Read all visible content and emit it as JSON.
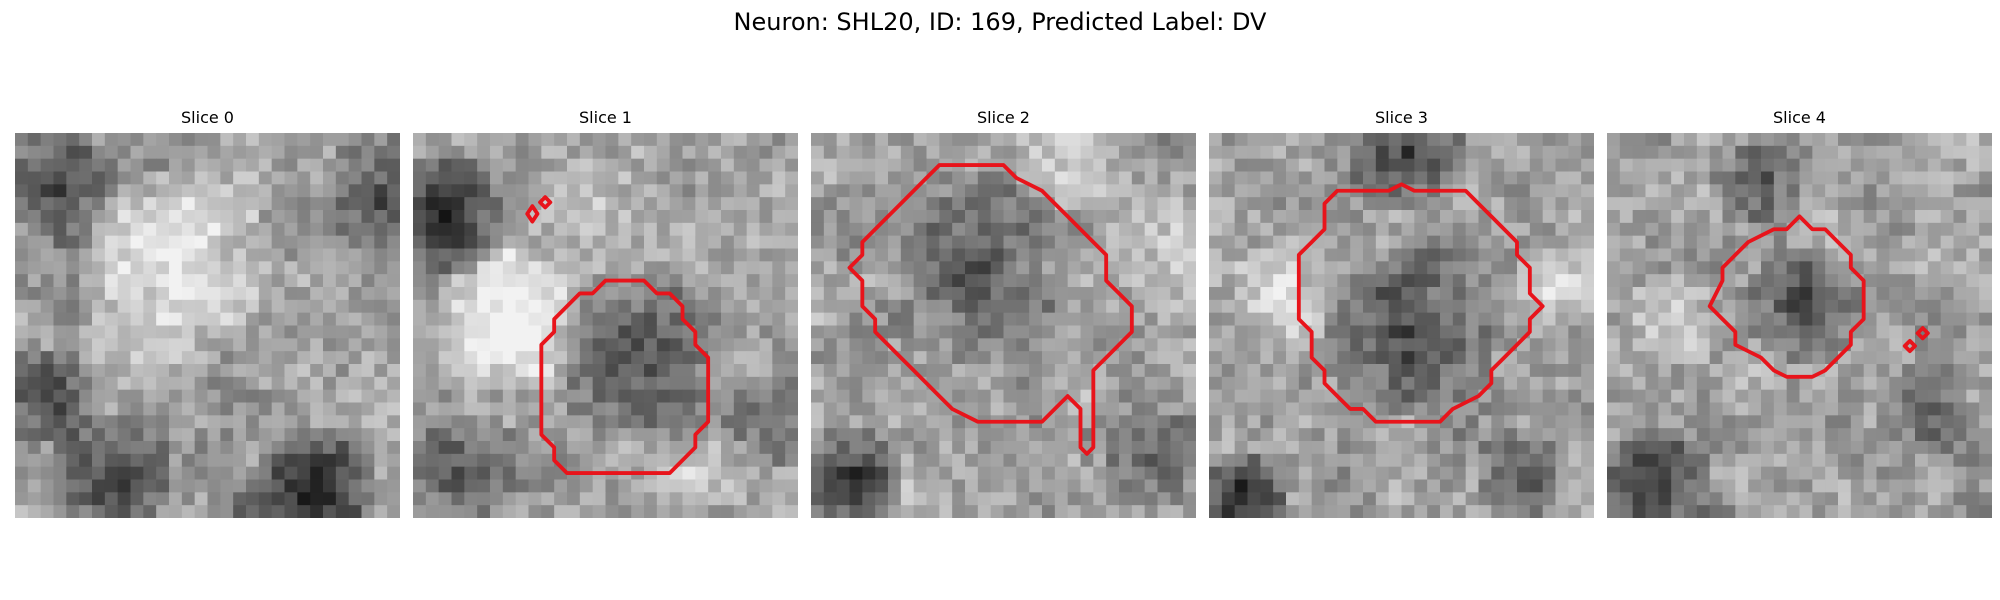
{
  "figure": {
    "title": "Neuron: SHL20, ID: 169, Predicted Label: DV"
  },
  "contour_color": "#e8141b",
  "panels": [
    {
      "title": "Slice 0",
      "blobs": [
        {
          "cx": 12,
          "cy": 10,
          "r": 8,
          "v": 70,
          "s": 0.55
        },
        {
          "cx": 3,
          "cy": 4,
          "r": 5,
          "v": -70,
          "s": 0.7
        },
        {
          "cx": 28,
          "cy": 4,
          "r": 5,
          "v": -60,
          "s": 0.7
        },
        {
          "cx": 2,
          "cy": 20,
          "r": 4,
          "v": -70,
          "s": 0.7
        },
        {
          "cx": 7,
          "cy": 26,
          "r": 5,
          "v": -80,
          "s": 0.7
        },
        {
          "cx": 23,
          "cy": 27,
          "r": 5,
          "v": -100,
          "s": 0.7
        },
        {
          "cx": 17,
          "cy": 29,
          "r": 3,
          "v": -40,
          "s": 0.7
        }
      ]
    },
    {
      "title": "Slice 1",
      "blobs": [
        {
          "cx": 2,
          "cy": 6,
          "r": 5,
          "v": -100,
          "s": 0.7
        },
        {
          "cx": 7,
          "cy": 14,
          "r": 6,
          "v": 90,
          "s": 0.55
        },
        {
          "cx": 13,
          "cy": 6,
          "r": 5,
          "v": 40,
          "s": 0.6
        },
        {
          "cx": 17,
          "cy": 17,
          "r": 7,
          "v": -70,
          "s": 0.6
        },
        {
          "cx": 27,
          "cy": 22,
          "r": 4,
          "v": -40,
          "s": 0.7
        },
        {
          "cx": 4,
          "cy": 26,
          "r": 5,
          "v": -60,
          "s": 0.7
        },
        {
          "cx": 22,
          "cy": 26,
          "r": 4,
          "v": 40,
          "s": 0.7
        }
      ],
      "contours": [
        [
          [
            15,
            11.5
          ],
          [
            18,
            11.5
          ],
          [
            19,
            12.5
          ],
          [
            20,
            12.5
          ],
          [
            21,
            13.5
          ],
          [
            21,
            14.5
          ],
          [
            22,
            15.5
          ],
          [
            22,
            16.5
          ],
          [
            23,
            17.5
          ],
          [
            23,
            22.5
          ],
          [
            22,
            23.5
          ],
          [
            22,
            24.5
          ],
          [
            21,
            25.5
          ],
          [
            20,
            26.5
          ],
          [
            17,
            26.5
          ],
          [
            12,
            26.5
          ],
          [
            11,
            25.5
          ],
          [
            11,
            24.5
          ],
          [
            10,
            23.5
          ],
          [
            10,
            16.5
          ],
          [
            11,
            15.5
          ],
          [
            11,
            14.5
          ],
          [
            12,
            13.5
          ],
          [
            13,
            12.5
          ],
          [
            14,
            12.5
          ]
        ],
        [
          [
            9.3,
            5.7
          ],
          [
            9.7,
            6.3
          ],
          [
            9.3,
            6.9
          ],
          [
            8.9,
            6.3
          ]
        ],
        [
          [
            10.3,
            5.0
          ],
          [
            10.7,
            5.4
          ],
          [
            10.3,
            5.8
          ],
          [
            9.9,
            5.4
          ]
        ]
      ]
    },
    {
      "title": "Slice 2",
      "blobs": [
        {
          "cx": 12,
          "cy": 10,
          "r": 8,
          "v": -60,
          "s": 0.55
        },
        {
          "cx": 3,
          "cy": 26,
          "r": 4,
          "v": -90,
          "s": 0.7
        },
        {
          "cx": 20,
          "cy": 2,
          "r": 5,
          "v": 40,
          "s": 0.7
        },
        {
          "cx": 26,
          "cy": 8,
          "r": 4,
          "v": 30,
          "s": 0.7
        },
        {
          "cx": 26,
          "cy": 25,
          "r": 4,
          "v": -40,
          "s": 0.7
        }
      ],
      "contours": [
        [
          [
            10,
            2.5
          ],
          [
            15,
            2.5
          ],
          [
            16,
            3.5
          ],
          [
            18,
            4.5
          ],
          [
            19,
            5.5
          ],
          [
            20,
            6.5
          ],
          [
            21,
            7.5
          ],
          [
            22,
            8.5
          ],
          [
            23,
            9.5
          ],
          [
            23,
            11.5
          ],
          [
            24,
            12.5
          ],
          [
            25,
            13.5
          ],
          [
            25,
            15.5
          ],
          [
            24,
            16.5
          ],
          [
            23,
            17.5
          ],
          [
            22,
            18.5
          ],
          [
            22,
            24.5
          ],
          [
            21.5,
            25.0
          ],
          [
            21,
            24.5
          ],
          [
            21,
            21.5
          ],
          [
            20,
            20.5
          ],
          [
            19,
            21.5
          ],
          [
            18,
            22.5
          ],
          [
            13,
            22.5
          ],
          [
            11,
            21.5
          ],
          [
            10,
            20.5
          ],
          [
            9,
            19.5
          ],
          [
            8,
            18.5
          ],
          [
            7,
            17.5
          ],
          [
            6,
            16.5
          ],
          [
            5,
            15.5
          ],
          [
            5,
            14.5
          ],
          [
            4,
            13.5
          ],
          [
            4,
            11.5
          ],
          [
            3,
            10.5
          ],
          [
            4,
            9.5
          ],
          [
            4,
            8.5
          ],
          [
            5,
            7.5
          ],
          [
            6,
            6.5
          ],
          [
            7,
            5.5
          ],
          [
            8,
            4.5
          ],
          [
            9,
            3.5
          ]
        ]
      ]
    },
    {
      "title": "Slice 3",
      "blobs": [
        {
          "cx": 15,
          "cy": 15,
          "r": 7,
          "v": -75,
          "s": 0.55
        },
        {
          "cx": 2,
          "cy": 28,
          "r": 4,
          "v": -110,
          "s": 0.7
        },
        {
          "cx": 15,
          "cy": 1,
          "r": 5,
          "v": -90,
          "s": 0.7
        },
        {
          "cx": 5,
          "cy": 12,
          "r": 4,
          "v": 50,
          "s": 0.7
        },
        {
          "cx": 27,
          "cy": 11,
          "r": 4,
          "v": 40,
          "s": 0.7
        },
        {
          "cx": 24,
          "cy": 26,
          "r": 4,
          "v": -60,
          "s": 0.7
        }
      ],
      "contours": [
        [
          [
            10,
            4.5
          ],
          [
            14,
            4.5
          ],
          [
            15,
            4.0
          ],
          [
            16,
            4.5
          ],
          [
            20,
            4.5
          ],
          [
            21,
            5.5
          ],
          [
            22,
            6.5
          ],
          [
            23,
            7.5
          ],
          [
            24,
            8.5
          ],
          [
            24,
            9.5
          ],
          [
            25,
            10.5
          ],
          [
            25,
            12.5
          ],
          [
            26,
            13.5
          ],
          [
            25,
            14.5
          ],
          [
            25,
            15.5
          ],
          [
            24,
            16.5
          ],
          [
            23,
            17.5
          ],
          [
            22,
            18.5
          ],
          [
            22,
            19.5
          ],
          [
            21,
            20.5
          ],
          [
            19,
            21.5
          ],
          [
            18,
            22.5
          ],
          [
            13,
            22.5
          ],
          [
            12,
            21.5
          ],
          [
            11,
            21.5
          ],
          [
            10,
            20.5
          ],
          [
            9,
            19.5
          ],
          [
            9,
            18.5
          ],
          [
            8,
            17.5
          ],
          [
            8,
            15.5
          ],
          [
            7,
            14.5
          ],
          [
            7,
            9.5
          ],
          [
            8,
            8.5
          ],
          [
            9,
            7.5
          ],
          [
            9,
            5.5
          ]
        ]
      ]
    },
    {
      "title": "Slice 4",
      "blobs": [
        {
          "cx": 15,
          "cy": 13,
          "r": 5,
          "v": -80,
          "s": 0.55
        },
        {
          "cx": 3,
          "cy": 27,
          "r": 5,
          "v": -90,
          "s": 0.7
        },
        {
          "cx": 11,
          "cy": 3,
          "r": 4,
          "v": -60,
          "s": 0.7
        },
        {
          "cx": 24,
          "cy": 21,
          "r": 4,
          "v": -50,
          "s": 0.7
        },
        {
          "cx": 5,
          "cy": 14,
          "r": 4,
          "v": 50,
          "s": 0.7
        },
        {
          "cx": 27,
          "cy": 8,
          "r": 4,
          "v": 30,
          "s": 0.7
        }
      ],
      "contours": [
        [
          [
            14,
            7.5
          ],
          [
            15,
            6.5
          ],
          [
            16,
            7.5
          ],
          [
            17,
            7.5
          ],
          [
            18,
            8.5
          ],
          [
            19,
            9.5
          ],
          [
            19,
            10.5
          ],
          [
            20,
            11.5
          ],
          [
            20,
            14.5
          ],
          [
            19,
            15.5
          ],
          [
            19,
            16.5
          ],
          [
            18,
            17.5
          ],
          [
            17,
            18.5
          ],
          [
            16,
            19.0
          ],
          [
            14,
            19.0
          ],
          [
            13,
            18.5
          ],
          [
            12,
            17.5
          ],
          [
            11,
            17.0
          ],
          [
            10,
            16.5
          ],
          [
            10,
            15.5
          ],
          [
            9,
            14.5
          ],
          [
            8,
            13.5
          ],
          [
            9,
            11.5
          ],
          [
            9,
            10.5
          ],
          [
            10,
            9.5
          ],
          [
            11,
            8.5
          ],
          [
            13,
            7.5
          ]
        ],
        [
          [
            23.6,
            16.2
          ],
          [
            24.0,
            16.6
          ],
          [
            23.6,
            17.0
          ],
          [
            23.2,
            16.6
          ]
        ],
        [
          [
            24.6,
            15.2
          ],
          [
            25.0,
            15.6
          ],
          [
            24.6,
            16.0
          ],
          [
            24.2,
            15.6
          ]
        ]
      ]
    }
  ]
}
